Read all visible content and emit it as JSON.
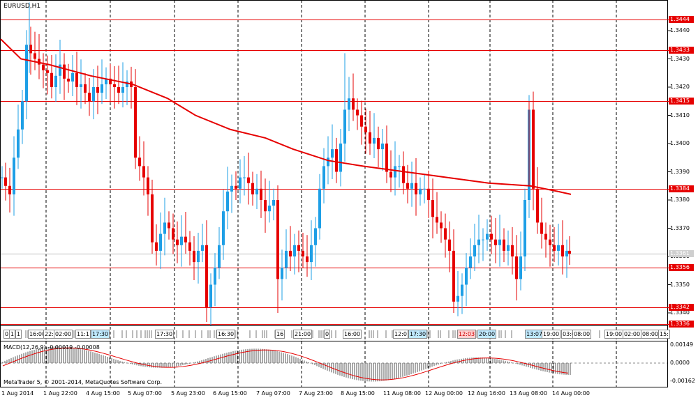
{
  "window_title": "EURUSD,H1",
  "macd_label": "MACD(12,26,9) -0.00019 -0.00008",
  "copyright": "MetaTrader 5, © 2001-2014, MetaQuotes Software Corp.",
  "price_axis": [
    "1.3440",
    "1.3430",
    "1.3420",
    "1.3410",
    "1.3400",
    "1.3390",
    "1.3380",
    "1.3370",
    "1.3360",
    "1.3350",
    "1.3340"
  ],
  "macd_axis": [
    "0.00149",
    "0.0000",
    "-0.00162"
  ],
  "time_axis": [
    "1 Aug 2014",
    "1 Aug 22:00",
    "4 Aug 15:00",
    "5 Aug 07:00",
    "5 Aug 23:00",
    "6 Aug 15:00",
    "7 Aug 07:00",
    "7 Aug 23:00",
    "8 Aug 15:00",
    "11 Aug 08:00",
    "12 Aug 00:00",
    "12 Aug 16:00",
    "13 Aug 08:00",
    "14 Aug 00:00"
  ],
  "horizontal_levels": [
    {
      "label": "1.3444",
      "value": 1.3444
    },
    {
      "label": "1.3433",
      "value": 1.3433
    },
    {
      "label": "1.3415",
      "value": 1.3415
    },
    {
      "label": "1.3384",
      "value": 1.3384
    },
    {
      "label": "1.3356",
      "value": 1.3356
    },
    {
      "label": "1.3342",
      "value": 1.3342
    },
    {
      "label": "1.3336",
      "value": 1.3336
    }
  ],
  "current_price": "1.3361",
  "events": [
    {
      "label": "0",
      "style": "normal"
    },
    {
      "label": "1",
      "style": "normal"
    },
    {
      "label": "1",
      "style": "normal"
    },
    {
      "label": "16:00",
      "style": "normal"
    },
    {
      "label": "22:00",
      "style": "normal"
    },
    {
      "label": "02:00",
      "style": "normal"
    },
    {
      "label": "11:1",
      "style": "normal"
    },
    {
      "label": "17:30",
      "style": "hl"
    },
    {
      "label": "17:30",
      "style": "normal"
    },
    {
      "label": "16:30",
      "style": "normal"
    },
    {
      "label": "16",
      "style": "normal"
    },
    {
      "label": "21:00",
      "style": "normal"
    },
    {
      "label": "0",
      "style": "normal"
    },
    {
      "label": "16:00",
      "style": "normal"
    },
    {
      "label": "12:0",
      "style": "normal"
    },
    {
      "label": "17:30",
      "style": "hl"
    },
    {
      "label": "12:03",
      "style": "red"
    },
    {
      "label": "20:00",
      "style": "hl"
    },
    {
      "label": "13:07",
      "style": "hl"
    },
    {
      "label": "19:00",
      "style": "normal"
    },
    {
      "label": "03:0",
      "style": "normal"
    },
    {
      "label": "08:00",
      "style": "normal"
    },
    {
      "label": "19:00",
      "style": "normal"
    },
    {
      "label": "02:00",
      "style": "normal"
    },
    {
      "label": "08:00",
      "style": "normal"
    },
    {
      "label": "15:",
      "style": "normal"
    }
  ],
  "colors": {
    "bull": "#1e9fe6",
    "bear": "#e60000",
    "level": "#e60000",
    "ma": "#e60000",
    "macd_hist": "#555555",
    "signal": "#e60000"
  }
}
